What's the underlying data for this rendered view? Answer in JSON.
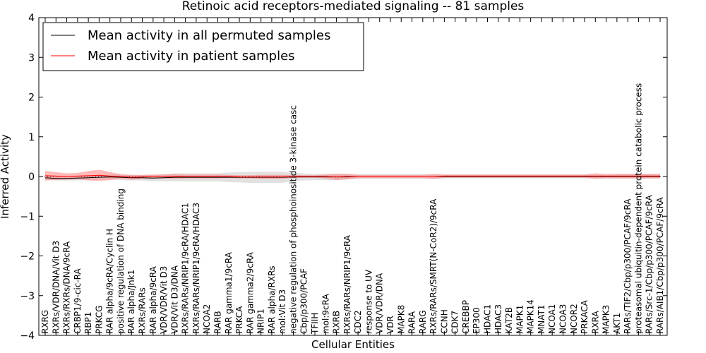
{
  "chart_data": {
    "type": "line",
    "title": "Retinoic acid receptors-mediated signaling -- 81 samples",
    "xlabel": "Cellular Entities",
    "ylabel": "Inferred Activity",
    "ylim": [
      -4,
      4
    ],
    "yticks": [
      4,
      3,
      2,
      1,
      0,
      -1,
      -2,
      -3,
      -4
    ],
    "ytick_labels": [
      "4",
      "3",
      "2",
      "1",
      "0",
      "−1",
      "−2",
      "−3",
      "−4"
    ],
    "legend_position": "top-left",
    "categories": [
      "RXRG",
      "RXRs/VDR/DNA/Vit D3",
      "RXRs/RXRs/DNA/9cRA",
      "CRBP1/9-cic-RA",
      "RBP1",
      "PRKCG",
      "RAR alpha/9cRA/Cyclin H",
      "positive regulation of DNA binding",
      "RAR alpha/Jnk1",
      "RXRs/RARs",
      "RAR alpha/9cRA",
      "VDR/VDR/Vit D3",
      "VDR/Vit D3/DNA",
      "RXRs/RARs/NRIP1/9cRA/HDAC1",
      "RXRs/RARs/NRIP1/9cRA/HDAC3",
      "NCOA2",
      "RARB",
      "RAR gamma1/9cRA",
      "PRKCA",
      "RAR gamma2/9cRA",
      "NRIP1",
      "RAR alpha/RXRs",
      "mol:Vit D3",
      "negative regulation of phosphoinositide 3-kinase casc",
      "Cbp/p300/PCAF",
      "TFIIH",
      "mol:9cRA",
      "RXRB",
      "RXRs/RARs/NRIP1/9cRA",
      "CDC2",
      "response to UV",
      "VDR/VDR/DNA",
      "VDR",
      "MAPK8",
      "RARA",
      "RARG",
      "RXRs/RARs/SMRT(N-CoR2)/9cRA",
      "CCNH",
      "CDK7",
      "CREBBP",
      "EP300",
      "HDAC1",
      "HDAC3",
      "KAT2B",
      "MAPK1",
      "MAPK14",
      "MNAT1",
      "NCOA1",
      "NCOA3",
      "NCOR2",
      "PRKACA",
      "RXRA",
      "MAPK3",
      "AKT1",
      "RARs/TIF2/Cbp/p300/PCAF/9cRA",
      "proteasomal ubiquitin-dependent protein catabolic process",
      "RARs/Src-1/Cbp/p300/PCAF/9cRA",
      "RARs/AIB1/Cbp/p300/PCAF/9cRA"
    ],
    "series": [
      {
        "name": "Mean activity in all permuted samples",
        "color": "#000000",
        "values": [
          -0.03,
          -0.05,
          -0.05,
          -0.04,
          -0.03,
          -0.02,
          -0.01,
          -0.02,
          -0.03,
          -0.03,
          -0.04,
          -0.03,
          -0.02,
          -0.02,
          -0.02,
          -0.02,
          -0.02,
          -0.02,
          -0.02,
          -0.02,
          -0.02,
          -0.02,
          -0.02,
          -0.01,
          -0.01,
          -0.01,
          -0.01,
          -0.01,
          -0.01,
          0,
          0,
          0,
          0,
          0,
          0,
          0,
          0,
          0,
          0,
          0,
          0,
          0,
          0,
          0,
          0,
          0,
          0,
          0,
          0,
          0,
          0,
          0,
          0,
          0,
          0,
          0,
          0,
          0
        ],
        "band": [
          0.05,
          0.05,
          0.05,
          0.06,
          0.06,
          0.06,
          0.06,
          0.07,
          0.07,
          0.07,
          0.08,
          0.09,
          0.1,
          0.1,
          0.1,
          0.1,
          0.1,
          0.12,
          0.13,
          0.14,
          0.14,
          0.14,
          0.14,
          0.1,
          0.09,
          0.08,
          0.08,
          0.08,
          0.07,
          0.06,
          0.06,
          0.06,
          0.06,
          0.06,
          0.06,
          0.06,
          0.06,
          0.05,
          0.05,
          0.05,
          0.05,
          0.05,
          0.05,
          0.05,
          0.05,
          0.05,
          0.05,
          0.05,
          0.05,
          0.05,
          0.05,
          0.05,
          0.05,
          0.05,
          0.05,
          0.05,
          0.05,
          0.05
        ],
        "band_color": "#aaaaaa"
      },
      {
        "name": "Mean activity in patient samples",
        "color": "#ff0000",
        "values": [
          0.02,
          0.01,
          0,
          0.01,
          0.02,
          0.03,
          0.01,
          0,
          -0.02,
          -0.01,
          0,
          0,
          0,
          0,
          0,
          0,
          0,
          0,
          -0.01,
          -0.01,
          -0.01,
          -0.01,
          -0.01,
          0,
          0,
          0,
          0,
          -0.01,
          0,
          0,
          0,
          0,
          0,
          0,
          0,
          0,
          0,
          0.01,
          0.01,
          0.01,
          0.01,
          0.01,
          0.01,
          0.01,
          0.01,
          0.01,
          0.01,
          0.01,
          0.01,
          0.01,
          0.01,
          0.01,
          0.01,
          0.01,
          0.01,
          0.01,
          0.01,
          0.01
        ],
        "band": [
          0.12,
          0.1,
          0.08,
          0.08,
          0.12,
          0.14,
          0.1,
          0.06,
          0.06,
          0.05,
          0.05,
          0.05,
          0.06,
          0.05,
          0.05,
          0.05,
          0.05,
          0.04,
          0.04,
          0.04,
          0.05,
          0.05,
          0.05,
          0.04,
          0.03,
          0.03,
          0.05,
          0.08,
          0.07,
          0.04,
          0.04,
          0.04,
          0.04,
          0.04,
          0.04,
          0.04,
          0.06,
          0.04,
          0.04,
          0.04,
          0.04,
          0.04,
          0.04,
          0.04,
          0.04,
          0.04,
          0.04,
          0.04,
          0.04,
          0.04,
          0.04,
          0.07,
          0.05,
          0.06,
          0.06,
          0.06,
          0.06,
          0.06
        ],
        "band_color": "#ff8080"
      }
    ]
  }
}
